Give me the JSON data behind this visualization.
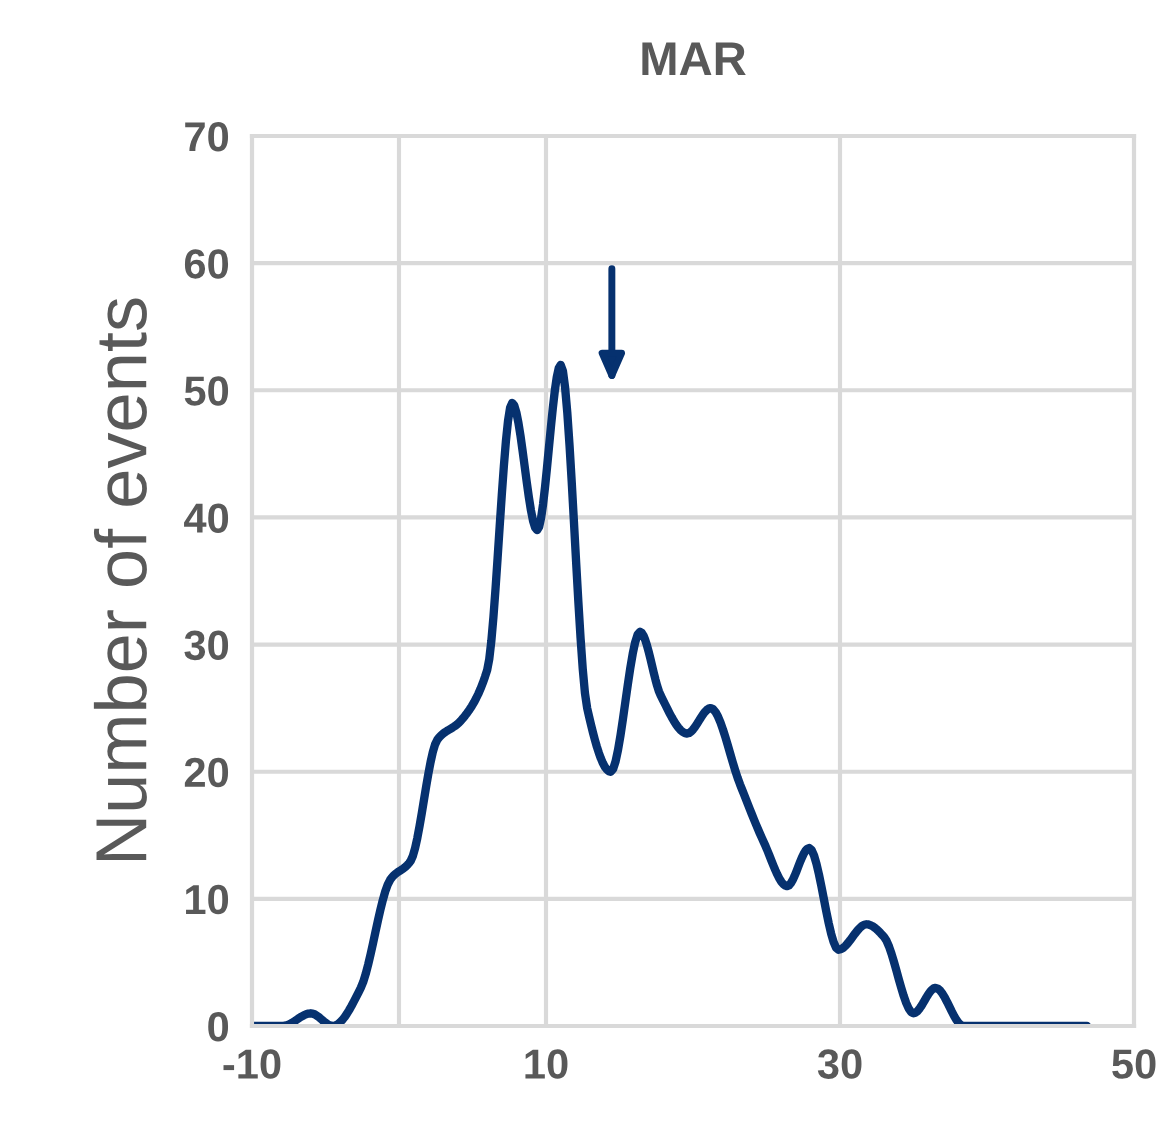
{
  "chart_data": {
    "type": "line",
    "title": "MAR",
    "ylabel": "Number of events",
    "x": [
      -10,
      -7.9,
      -6.0,
      -4.5,
      -2.6,
      -0.6,
      0.8,
      2.6,
      4.2,
      6.0,
      7.7,
      9.4,
      11.0,
      12.8,
      14.4,
      16.4,
      17.8,
      19.6,
      21.2,
      23.2,
      24.8,
      26.4,
      27.9,
      29.9,
      31.8,
      33.0,
      35.0,
      36.5,
      38.4,
      46.8
    ],
    "series": [
      {
        "color": "#06316f",
        "values": [
          0,
          0,
          1,
          0,
          3,
          11.5,
          13,
          22.5,
          24,
          28,
          49,
          39,
          52,
          25,
          20,
          31,
          26,
          23,
          25,
          19,
          14.5,
          11,
          14,
          6,
          8,
          7,
          1,
          3,
          0,
          0
        ]
      }
    ],
    "xlim": [
      -10,
      50
    ],
    "xticks": [
      -10,
      {
        "value": 0,
        "label": null
      },
      10,
      30,
      50
    ],
    "ylim": [
      0,
      70
    ],
    "yticks": [
      0,
      10,
      20,
      30,
      40,
      50,
      60,
      70
    ],
    "grid": true,
    "marker": "none",
    "line_style": "solid"
  }
}
